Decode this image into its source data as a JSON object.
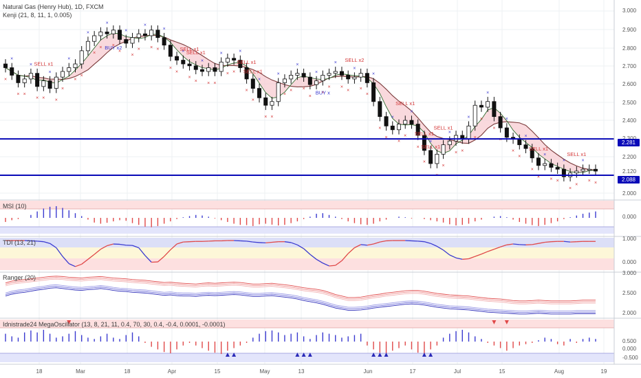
{
  "panes": {
    "main": {
      "title": "Natural Gas (Henry Hub), 1D, FXCM",
      "indicator": "Kenji (21, 8, 11, 1, 0.005)",
      "y_ticks": [
        "3.000",
        "2.900",
        "2.800",
        "2.700",
        "2.600",
        "2.500",
        "2.400",
        "2.300",
        "2.200",
        "2.120",
        "2.000"
      ],
      "level_tags": [
        "2.281",
        "2.088"
      ]
    },
    "msi": {
      "title": "MSI (10)",
      "y_ticks": [
        "0.000"
      ]
    },
    "tdi": {
      "title": "TDI (13, 21)",
      "y_ticks": [
        "1.000",
        "0.000"
      ]
    },
    "ranger": {
      "title": "Ranger (20)",
      "y_ticks": [
        "3.000",
        "2.500",
        "2.000"
      ]
    },
    "mega": {
      "title": "Idnistrade24 MegaOscillator (13, 8, 21, 11, 0.4, 70, 30, 0.4, -0.4, 0.0001, -0.0001)",
      "y_ticks": [
        "0.500",
        "0.000",
        "-0.500"
      ]
    }
  },
  "x_axis": {
    "labels": [
      "18",
      "Mar",
      "18",
      "Apr",
      "15",
      "May",
      "13",
      "Jun",
      "17",
      "Jul",
      "15",
      "Aug",
      "19"
    ]
  },
  "chart_data": {
    "type": "candlestick",
    "symbol": "Natural Gas (Henry Hub)",
    "timeframe": "1D",
    "ylim": [
      1.96,
      3.02
    ],
    "horizontal_levels": [
      2.281,
      2.088
    ],
    "close": [
      2.66,
      2.62,
      2.58,
      2.6,
      2.63,
      2.56,
      2.59,
      2.55,
      2.61,
      2.64,
      2.66,
      2.68,
      2.75,
      2.8,
      2.83,
      2.85,
      2.84,
      2.86,
      2.81,
      2.79,
      2.82,
      2.84,
      2.83,
      2.86,
      2.82,
      2.78,
      2.72,
      2.7,
      2.68,
      2.67,
      2.65,
      2.64,
      2.66,
      2.64,
      2.69,
      2.71,
      2.7,
      2.66,
      2.6,
      2.55,
      2.5,
      2.46,
      2.48,
      2.58,
      2.6,
      2.62,
      2.63,
      2.61,
      2.57,
      2.59,
      2.62,
      2.63,
      2.64,
      2.62,
      2.6,
      2.61,
      2.63,
      2.58,
      2.48,
      2.4,
      2.35,
      2.33,
      2.36,
      2.38,
      2.36,
      2.3,
      2.22,
      2.15,
      2.2,
      2.25,
      2.27,
      2.3,
      2.28,
      2.35,
      2.46,
      2.45,
      2.48,
      2.4,
      2.34,
      2.29,
      2.28,
      2.25,
      2.23,
      2.18,
      2.14,
      2.15,
      2.13,
      2.12,
      2.08,
      2.1,
      2.11,
      2.12,
      2.12,
      2.11
    ],
    "annotations": {
      "sell": [
        "SELL x1",
        "SELL x1",
        "SELL x1",
        "SELL x1",
        "SELL x1",
        "SELL x2",
        "SELL x1",
        "SELL x1",
        "SELL x1",
        "SELL x1",
        "SELL x1",
        "SELL x1"
      ],
      "buy": [
        "BUY x2",
        "BUY x"
      ]
    },
    "series": [
      {
        "name": "MSI (10)",
        "type": "histogram",
        "values": [
          -0.35,
          -0.2,
          -0.1,
          0.0,
          0.25,
          0.55,
          0.8,
          0.95,
          1.0,
          0.85,
          0.65,
          0.4,
          0.15,
          -0.15,
          -0.4,
          -0.5,
          -0.42,
          -0.3,
          -0.2,
          -0.25,
          -0.45,
          -0.6,
          -0.75,
          -0.8,
          -0.7,
          -0.5,
          -0.3,
          -0.1,
          0.05,
          0.15,
          0.25,
          0.2,
          0.1,
          -0.05,
          -0.2,
          -0.35,
          -0.5,
          -0.6,
          -0.62,
          -0.7,
          -0.55,
          -0.5,
          -0.58,
          -0.65,
          -0.6,
          -0.45,
          -0.3,
          -0.1,
          0.1,
          0.35,
          0.4,
          0.25,
          0.1,
          -0.1,
          -0.3,
          -0.45,
          -0.55,
          -0.6,
          -0.5,
          -0.3,
          -0.15,
          0.0,
          0.1,
          0.05,
          -0.05,
          0.0,
          -0.1,
          -0.2,
          -0.3,
          -0.4,
          -0.55,
          -0.65,
          -0.6,
          -0.5,
          -0.3,
          -0.15,
          0.0,
          0.1,
          0.15,
          0.05,
          -0.15,
          -0.35,
          -0.5,
          -0.62,
          -0.7,
          -0.6,
          -0.45,
          -0.3,
          -0.1,
          0.05,
          0.2,
          0.35,
          0.45,
          0.55
        ]
      },
      {
        "name": "TDI (13, 21)",
        "type": "line",
        "values": [
          1.0,
          1.0,
          1.0,
          1.0,
          0.99,
          0.98,
          0.96,
          0.9,
          0.75,
          0.45,
          0.2,
          0.1,
          0.18,
          0.35,
          0.52,
          0.7,
          0.82,
          0.88,
          0.87,
          0.84,
          0.83,
          0.75,
          0.48,
          0.25,
          0.26,
          0.45,
          0.68,
          0.88,
          0.95,
          0.96,
          0.97,
          0.97,
          0.98,
          0.99,
          0.99,
          1.0,
          1.0,
          0.99,
          0.98,
          0.95,
          0.93,
          0.92,
          0.94,
          0.96,
          0.96,
          0.93,
          0.85,
          0.72,
          0.52,
          0.35,
          0.22,
          0.12,
          0.14,
          0.3,
          0.55,
          0.75,
          0.86,
          0.84,
          0.88,
          0.95,
          0.99,
          1.0,
          1.0,
          1.0,
          0.99,
          0.98,
          0.96,
          0.9,
          0.8,
          0.67,
          0.5,
          0.4,
          0.35,
          0.37,
          0.45,
          0.53,
          0.62,
          0.7,
          0.78,
          0.85,
          0.88,
          0.86,
          0.85,
          0.86,
          0.9,
          0.94,
          0.96,
          0.97,
          0.97,
          0.95,
          0.96,
          0.97,
          0.97,
          0.97
        ]
      },
      {
        "name": "Ranger upper",
        "type": "line",
        "values": [
          2.75,
          2.8,
          2.82,
          2.84,
          2.86,
          2.88,
          2.9,
          2.92,
          2.93,
          2.92,
          2.9,
          2.89,
          2.88,
          2.9,
          2.91,
          2.92,
          2.9,
          2.88,
          2.87,
          2.86,
          2.84,
          2.83,
          2.82,
          2.8,
          2.78,
          2.76,
          2.77,
          2.75,
          2.74,
          2.73,
          2.72,
          2.74,
          2.75,
          2.74,
          2.75,
          2.76,
          2.77,
          2.76,
          2.74,
          2.72,
          2.72,
          2.73,
          2.74,
          2.72,
          2.7,
          2.68,
          2.65,
          2.62,
          2.6,
          2.58,
          2.55,
          2.5,
          2.44,
          2.4,
          2.36,
          2.36,
          2.37,
          2.4,
          2.43,
          2.45,
          2.48,
          2.5,
          2.52,
          2.54,
          2.55,
          2.55,
          2.53,
          2.5,
          2.47,
          2.45,
          2.43,
          2.42,
          2.41,
          2.4,
          2.38,
          2.36,
          2.34,
          2.33,
          2.32,
          2.3,
          2.28,
          2.27,
          2.27,
          2.28,
          2.29,
          2.28,
          2.27,
          2.27,
          2.27,
          2.27,
          2.28,
          2.29,
          2.29,
          2.29
        ]
      },
      {
        "name": "Ranger lower",
        "type": "line",
        "values": [
          2.4,
          2.45,
          2.48,
          2.5,
          2.53,
          2.56,
          2.58,
          2.61,
          2.62,
          2.6,
          2.58,
          2.56,
          2.55,
          2.57,
          2.58,
          2.6,
          2.58,
          2.55,
          2.53,
          2.52,
          2.5,
          2.49,
          2.48,
          2.46,
          2.44,
          2.42,
          2.43,
          2.41,
          2.4,
          2.4,
          2.39,
          2.41,
          2.42,
          2.41,
          2.42,
          2.43,
          2.44,
          2.43,
          2.41,
          2.39,
          2.39,
          2.4,
          2.41,
          2.39,
          2.37,
          2.35,
          2.32,
          2.28,
          2.25,
          2.22,
          2.18,
          2.13,
          2.08,
          2.05,
          2.02,
          2.02,
          2.03,
          2.05,
          2.08,
          2.1,
          2.12,
          2.14,
          2.16,
          2.18,
          2.19,
          2.18,
          2.16,
          2.13,
          2.1,
          2.08,
          2.06,
          2.05,
          2.04,
          2.03,
          2.01,
          1.99,
          1.97,
          1.96,
          1.95,
          1.94,
          1.93,
          1.92,
          1.92,
          1.93,
          1.94,
          1.93,
          1.92,
          1.92,
          1.92,
          1.92,
          1.93,
          1.93,
          1.93,
          1.93
        ]
      },
      {
        "name": "Idnistrade24 MegaOscillator",
        "type": "histogram",
        "values": [
          0.6,
          0.4,
          0.3,
          0.7,
          0.85,
          0.7,
          0.9,
          0.6,
          0.3,
          0.4,
          0.6,
          0.8,
          0.5,
          0.3,
          0.2,
          0.4,
          0.6,
          0.3,
          0.2,
          0.5,
          0.7,
          0.4,
          -0.1,
          -0.4,
          -0.6,
          -0.8,
          -0.9,
          -0.6,
          -0.3,
          -0.1,
          -0.3,
          -0.5,
          -0.7,
          -0.85,
          -0.95,
          -0.7,
          -0.5,
          -0.3,
          -0.1,
          0.3,
          0.6,
          0.8,
          0.85,
          0.7,
          0.5,
          0.6,
          0.7,
          0.4,
          0.2,
          0.5,
          0.7,
          0.6,
          0.5,
          0.3,
          0.4,
          0.5,
          0.6,
          -0.3,
          -0.6,
          -0.85,
          -0.9,
          -0.7,
          -0.5,
          -0.3,
          -0.6,
          -0.85,
          -0.95,
          -0.6,
          -0.3,
          0.3,
          0.6,
          0.8,
          0.9,
          0.7,
          0.4,
          0.2,
          -0.1,
          -0.3,
          -0.5,
          -0.7,
          -0.5,
          -0.3,
          -0.2,
          -0.1,
          0.1,
          0.3,
          0.2,
          -0.2,
          -0.3,
          0.2,
          -0.1,
          0.2,
          0.3,
          0.2
        ]
      }
    ]
  }
}
